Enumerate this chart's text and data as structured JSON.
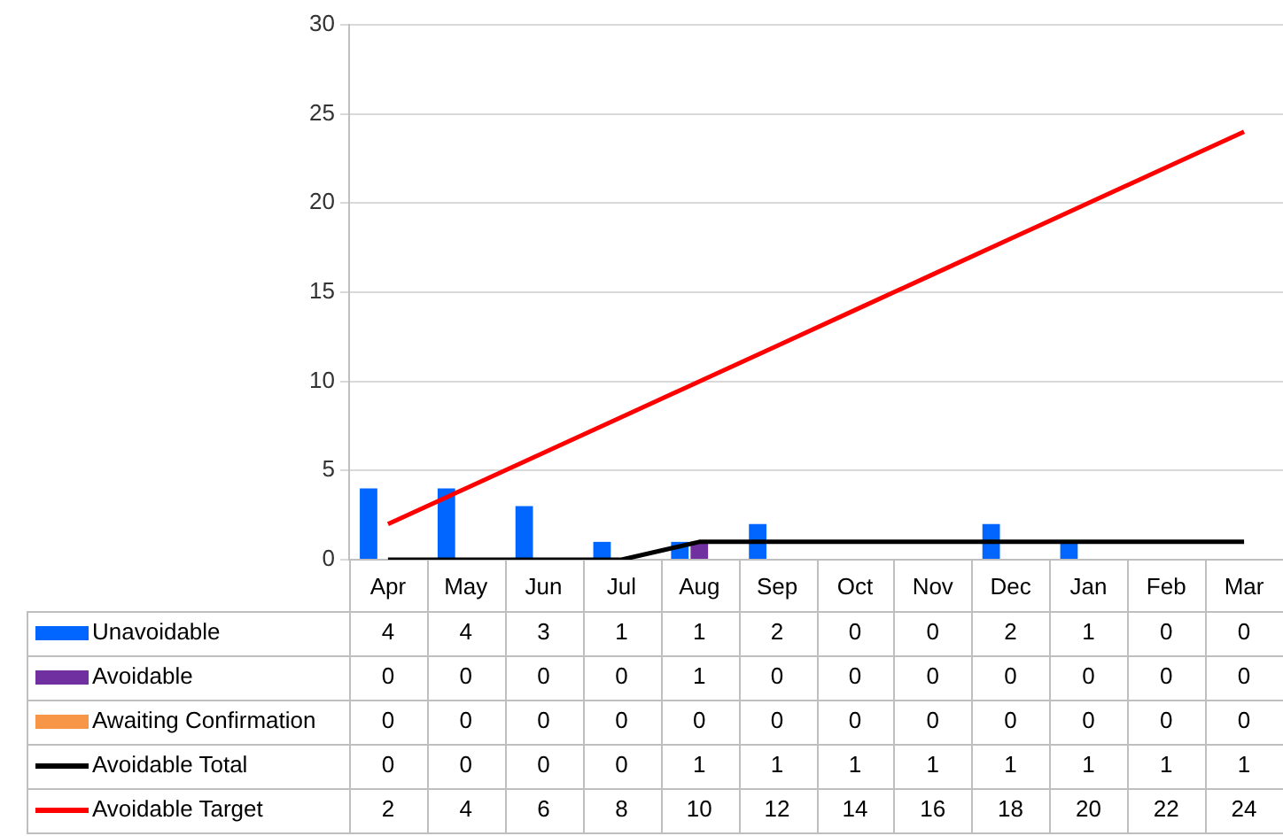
{
  "chart_data": {
    "type": "bar",
    "categories": [
      "Apr",
      "May",
      "Jun",
      "Jul",
      "Aug",
      "Sep",
      "Oct",
      "Nov",
      "Dec",
      "Jan",
      "Feb",
      "Mar"
    ],
    "series": [
      {
        "name": "Unavoidable",
        "color": "#0066ff",
        "values": [
          4,
          4,
          3,
          1,
          1,
          2,
          0,
          0,
          2,
          1,
          0,
          0
        ]
      },
      {
        "name": "Avoidable",
        "color": "#7030a0",
        "values": [
          0,
          0,
          0,
          0,
          1,
          0,
          0,
          0,
          0,
          0,
          0,
          0
        ]
      },
      {
        "name": "Awaiting Confirmation",
        "color": "#f79646",
        "values": [
          0,
          0,
          0,
          0,
          0,
          0,
          0,
          0,
          0,
          0,
          0,
          0
        ]
      },
      {
        "name": "Avoidable Total",
        "type": "line",
        "color": "#000000",
        "values": [
          0,
          0,
          0,
          0,
          1,
          1,
          1,
          1,
          1,
          1,
          1,
          1
        ]
      },
      {
        "name": "Avoidable Target",
        "type": "line",
        "color": "#ff0000",
        "values": [
          2,
          4,
          6,
          8,
          10,
          12,
          14,
          16,
          18,
          20,
          22,
          24
        ]
      }
    ],
    "ylim": [
      0,
      30
    ],
    "yticks": [
      0,
      5,
      10,
      15,
      20,
      25,
      30
    ],
    "grid": "y",
    "legend": "bottom",
    "data_labels": true,
    "marker": "none"
  }
}
